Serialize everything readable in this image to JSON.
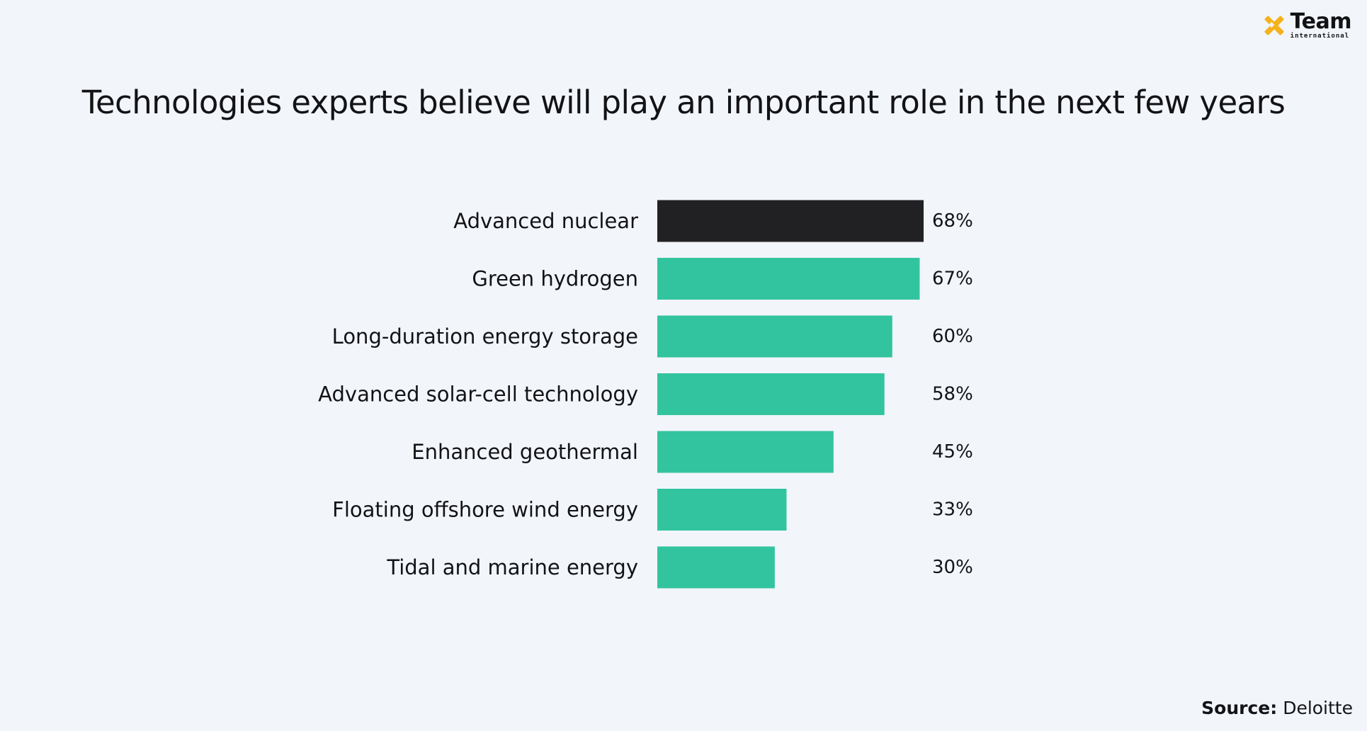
{
  "logo": {
    "word": "Team",
    "sub": "international",
    "accent_color": "#f6b21a"
  },
  "chart_data": {
    "type": "bar",
    "orientation": "horizontal",
    "title": "Technologies experts believe will play an important role in the next few years",
    "categories": [
      "Advanced nuclear",
      "Green hydrogen",
      "Long-duration energy storage",
      "Advanced solar-cell technology",
      "Enhanced geothermal",
      "Floating offshore wind energy",
      "Tidal and marine energy"
    ],
    "values": [
      68,
      67,
      60,
      58,
      45,
      33,
      30
    ],
    "value_labels": [
      "68%",
      "67%",
      "60%",
      "58%",
      "45%",
      "33%",
      "30%"
    ],
    "unit": "%",
    "xlim": [
      0,
      68
    ],
    "grid": false,
    "legend": "none",
    "colors": {
      "highlight": "#212023",
      "default": "#32c49f"
    },
    "highlight_index": 0
  },
  "source": {
    "label": "Source:",
    "value": "Deloitte"
  }
}
